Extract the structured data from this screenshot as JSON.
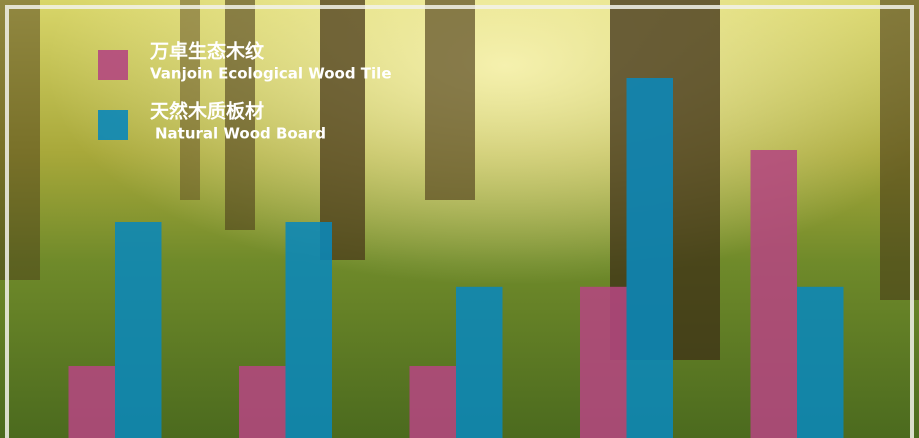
{
  "chart_data": {
    "type": "bar",
    "categories": [
      null,
      null,
      null,
      null,
      null
    ],
    "ylim": [
      0,
      100
    ],
    "series": [
      {
        "name": "万卓生态木纹",
        "name_en": "Vanjoin Ecological Wood Tile",
        "color": "#b4477f",
        "values": [
          20,
          20,
          20,
          42,
          80
        ]
      },
      {
        "name": "天然木质板材",
        "name_en": "Natural Wood Board",
        "color": "#0a87b9",
        "values": [
          60,
          60,
          42,
          100,
          42
        ]
      }
    ]
  }
}
